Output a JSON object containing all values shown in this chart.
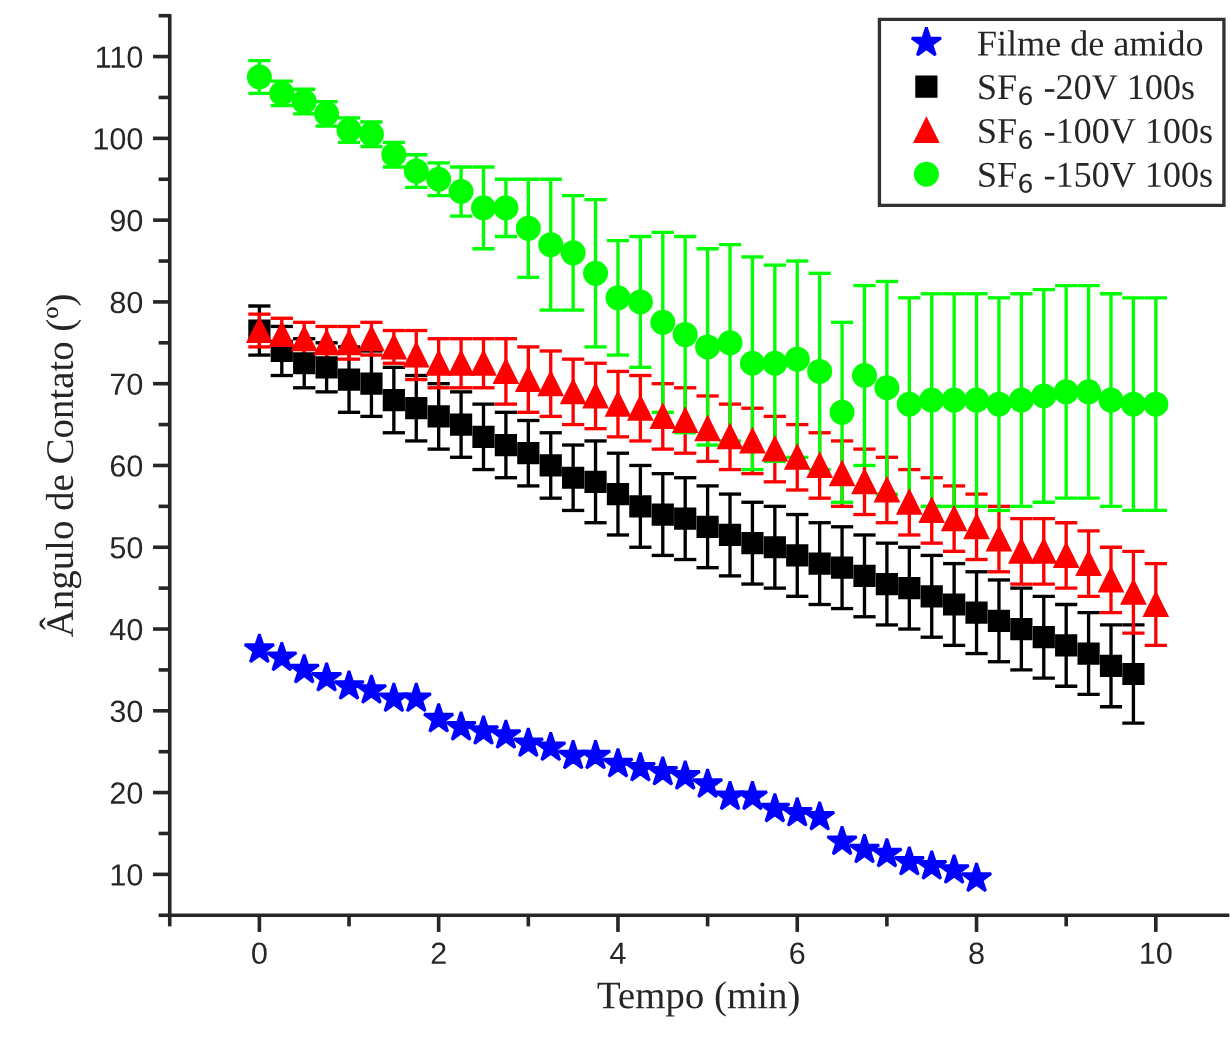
{
  "chart_data": {
    "type": "scatter",
    "xlabel": "Tempo (min)",
    "ylabel": "Ângulo de Contato (º)",
    "xlim": [
      -1,
      10.8
    ],
    "ylim": [
      5,
      115
    ],
    "xticks": [
      0,
      2,
      4,
      6,
      8,
      10
    ],
    "yticks": [
      10,
      20,
      30,
      40,
      50,
      60,
      70,
      80,
      90,
      100,
      110
    ],
    "grid": false,
    "legend": "top right",
    "series": [
      {
        "name": "Filme de amido",
        "color": "#0000ff",
        "marker": "star",
        "x": [
          0,
          0.25,
          0.5,
          0.75,
          1,
          1.25,
          1.5,
          1.75,
          2,
          2.25,
          2.5,
          2.75,
          3,
          3.25,
          3.5,
          3.75,
          4,
          4.25,
          4.5,
          4.75,
          5,
          5.25,
          5.5,
          5.75,
          6,
          6.25,
          6.5,
          6.75,
          7,
          7.25,
          7.5,
          7.75,
          8
        ],
        "values": [
          37.5,
          36.5,
          35,
          34,
          33,
          32.5,
          31.5,
          31.5,
          29,
          28,
          27.5,
          27,
          26,
          25.5,
          24.5,
          24.5,
          23.5,
          23,
          22.5,
          22,
          21,
          19.5,
          19.5,
          18,
          17.5,
          17,
          14,
          13,
          12.5,
          11.5,
          11,
          10.5,
          9.5
        ]
      },
      {
        "name": "SF$_{6}$ -20V 100s",
        "color": "#000000",
        "marker": "square",
        "x": [
          0,
          0.25,
          0.5,
          0.75,
          1,
          1.25,
          1.5,
          1.75,
          2,
          2.25,
          2.5,
          2.75,
          3,
          3.25,
          3.5,
          3.75,
          4,
          4.25,
          4.5,
          4.75,
          5,
          5.25,
          5.5,
          5.75,
          6,
          6.25,
          6.5,
          6.75,
          7,
          7.25,
          7.5,
          7.75,
          8,
          8.25,
          8.5,
          8.75,
          9,
          9.25,
          9.5,
          9.75
        ],
        "values": [
          76.5,
          74,
          72.5,
          72,
          70.5,
          70,
          68,
          67,
          66,
          65,
          63.5,
          62.5,
          61.5,
          60,
          58.5,
          58,
          56.5,
          55,
          54,
          53.5,
          52.5,
          51.5,
          50.5,
          50,
          49,
          48,
          47.5,
          46.5,
          45.5,
          45,
          44,
          43,
          42,
          41,
          40,
          39,
          38,
          37,
          35.5,
          34.5
        ],
        "errors": [
          3,
          3,
          3,
          3,
          4,
          4,
          4,
          4,
          4,
          4,
          4,
          4,
          4,
          4,
          4,
          5,
          5,
          5,
          5,
          5,
          5,
          5,
          5,
          5,
          5,
          5,
          5,
          5,
          5,
          5,
          5,
          5,
          5,
          5,
          5,
          5,
          5,
          5,
          5,
          6
        ]
      },
      {
        "name": "SF$_{6}$ -100V 100s",
        "color": "#ff0000",
        "marker": "triangle",
        "x": [
          0,
          0.25,
          0.5,
          0.75,
          1,
          1.25,
          1.5,
          1.75,
          2,
          2.25,
          2.5,
          2.75,
          3,
          3.25,
          3.5,
          3.75,
          4,
          4.25,
          4.5,
          4.75,
          5,
          5.25,
          5.5,
          5.75,
          6,
          6.25,
          6.5,
          6.75,
          7,
          7.25,
          7.5,
          7.75,
          8,
          8.25,
          8.5,
          8.75,
          9,
          9.25,
          9.5,
          9.75,
          10
        ],
        "values": [
          76.5,
          76,
          75.5,
          75,
          75,
          75.5,
          74.5,
          73.5,
          72.5,
          72.5,
          72.5,
          71.5,
          70.5,
          70,
          69,
          68.5,
          67.5,
          67,
          66,
          65.5,
          64.5,
          63.5,
          63,
          62,
          61,
          60,
          59,
          58,
          57,
          55.5,
          54.5,
          53.5,
          52.5,
          51,
          49.5,
          49.5,
          49,
          48,
          46,
          44.5,
          43
        ],
        "errors": [
          2,
          2,
          2,
          2,
          2,
          2,
          2,
          3,
          3,
          3,
          3,
          4,
          4,
          4,
          4,
          4,
          4,
          4,
          4,
          4,
          4,
          4,
          4,
          4,
          4,
          4,
          4,
          4,
          4,
          4,
          4,
          4,
          4,
          4,
          4,
          4,
          4,
          4,
          4,
          5,
          5
        ]
      },
      {
        "name": "SF$_{6}$ -150V 100s",
        "color": "#00ff00",
        "marker": "circle",
        "x": [
          0,
          0.25,
          0.5,
          0.75,
          1,
          1.25,
          1.5,
          1.75,
          2,
          2.25,
          2.5,
          2.75,
          3,
          3.25,
          3.5,
          3.75,
          4,
          4.25,
          4.5,
          4.75,
          5,
          5.25,
          5.5,
          5.75,
          6,
          6.25,
          6.5,
          6.75,
          7,
          7.25,
          7.5,
          7.75,
          8,
          8.25,
          8.5,
          8.75,
          9,
          9.25,
          9.5,
          9.75,
          10
        ],
        "values": [
          107.5,
          105.5,
          104.5,
          103,
          101,
          100.5,
          98,
          96,
          95,
          93.5,
          91.5,
          91.5,
          89,
          87,
          86,
          83.5,
          80.5,
          80,
          77.5,
          76,
          74.5,
          75,
          72.5,
          72.5,
          73,
          71.5,
          66.5,
          71,
          69.5,
          67.5,
          68,
          68,
          68,
          67.5,
          68,
          68.5,
          69,
          69,
          68,
          67.5,
          67.5
        ],
        "errors": [
          2,
          1.5,
          1.5,
          1.5,
          1.5,
          1.5,
          1.5,
          2,
          2,
          3,
          5,
          3.5,
          6,
          8,
          7,
          9,
          7,
          8,
          11,
          12,
          12,
          12,
          13,
          12,
          12,
          12,
          11,
          11,
          13,
          13,
          13,
          13,
          13,
          13,
          13,
          13,
          13,
          13,
          13,
          13,
          13
        ]
      }
    ]
  }
}
